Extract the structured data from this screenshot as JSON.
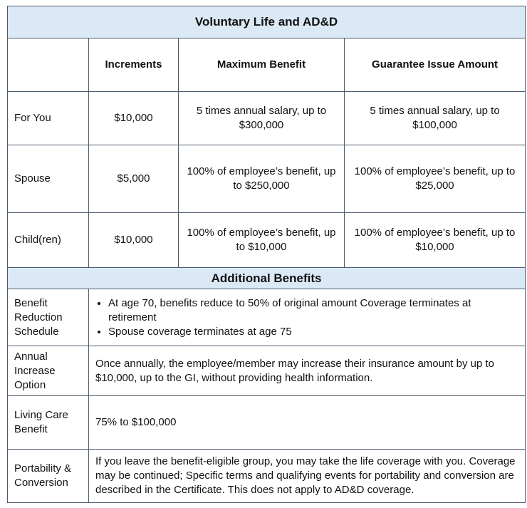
{
  "header": {
    "title": "Voluntary Life and AD&D"
  },
  "table": {
    "columns": [
      "Increments",
      "Maximum Benefit",
      "Guarantee Issue Amount"
    ],
    "rows": [
      [
        "For You",
        "$10,000",
        "5 times annual salary, up to $300,000",
        "5 times annual salary, up to $100,000"
      ],
      [
        "Spouse",
        "$5,000",
        "100% of employee’s benefit, up to $250,000",
        "100% of employee’s benefit, up to $25,000"
      ],
      [
        "Child(ren)",
        "$10,000",
        "100% of employee’s benefit, up to $10,000",
        "100% of employee’s benefit, up to $10,000"
      ]
    ]
  },
  "additional": {
    "title": "Additional Benefits",
    "items": [
      {
        "label": "Benefit Reduction Schedule",
        "bullets": [
          "At age 70, benefits reduce to 50% of original amount Coverage terminates at retirement",
          "Spouse coverage terminates at age 75"
        ]
      },
      {
        "label": "Annual Increase Option",
        "text": "Once annually, the employee/member may increase their insurance amount by up to $10,000, up to the GI, without providing health information."
      },
      {
        "label": "Living Care Benefit",
        "text": "75% to $100,000"
      },
      {
        "label": "Portability & Conversion",
        "text": "If you leave the benefit-eligible group, you may take the life coverage with you. Coverage may be continued; Specific terms and qualifying events for portability and conversion are described in the Certificate. This does not apply to AD&D coverage."
      }
    ]
  }
}
